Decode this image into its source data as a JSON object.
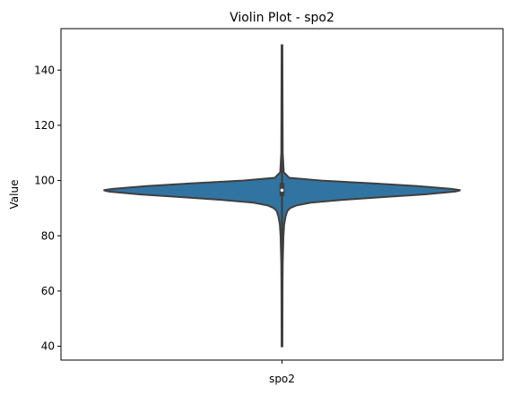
{
  "chart_data": {
    "type": "violin",
    "title": "Violin Plot - spo2",
    "xlabel": "",
    "ylabel": "Value",
    "categories": [
      "spo2"
    ],
    "ylim": [
      35,
      155
    ],
    "yticks": [
      40,
      60,
      80,
      100,
      120,
      140
    ],
    "grid": false,
    "colors": {
      "fill": "#3274a1",
      "edge": "#3f3f3f",
      "median": "#ffffff"
    },
    "series": [
      {
        "min": 40,
        "q1": 95,
        "median": 96.5,
        "q3": 98.5,
        "max": 149,
        "whisker_low": 91,
        "whisker_high": 101,
        "density_profile": [
          [
            40,
            0.002
          ],
          [
            60,
            0.003
          ],
          [
            70,
            0.004
          ],
          [
            75,
            0.006
          ],
          [
            80,
            0.008
          ],
          [
            84,
            0.012
          ],
          [
            87,
            0.02
          ],
          [
            89,
            0.03
          ],
          [
            90,
            0.045
          ],
          [
            91,
            0.08
          ],
          [
            92,
            0.16
          ],
          [
            93,
            0.34
          ],
          [
            94,
            0.56
          ],
          [
            95,
            0.8
          ],
          [
            96,
            0.97
          ],
          [
            96.5,
            1.0
          ],
          [
            97,
            0.95
          ],
          [
            98,
            0.76
          ],
          [
            99,
            0.5
          ],
          [
            100,
            0.22
          ],
          [
            101,
            0.04
          ],
          [
            103,
            0.01
          ],
          [
            110,
            0.004
          ],
          [
            130,
            0.003
          ],
          [
            149,
            0.002
          ]
        ]
      }
    ]
  }
}
